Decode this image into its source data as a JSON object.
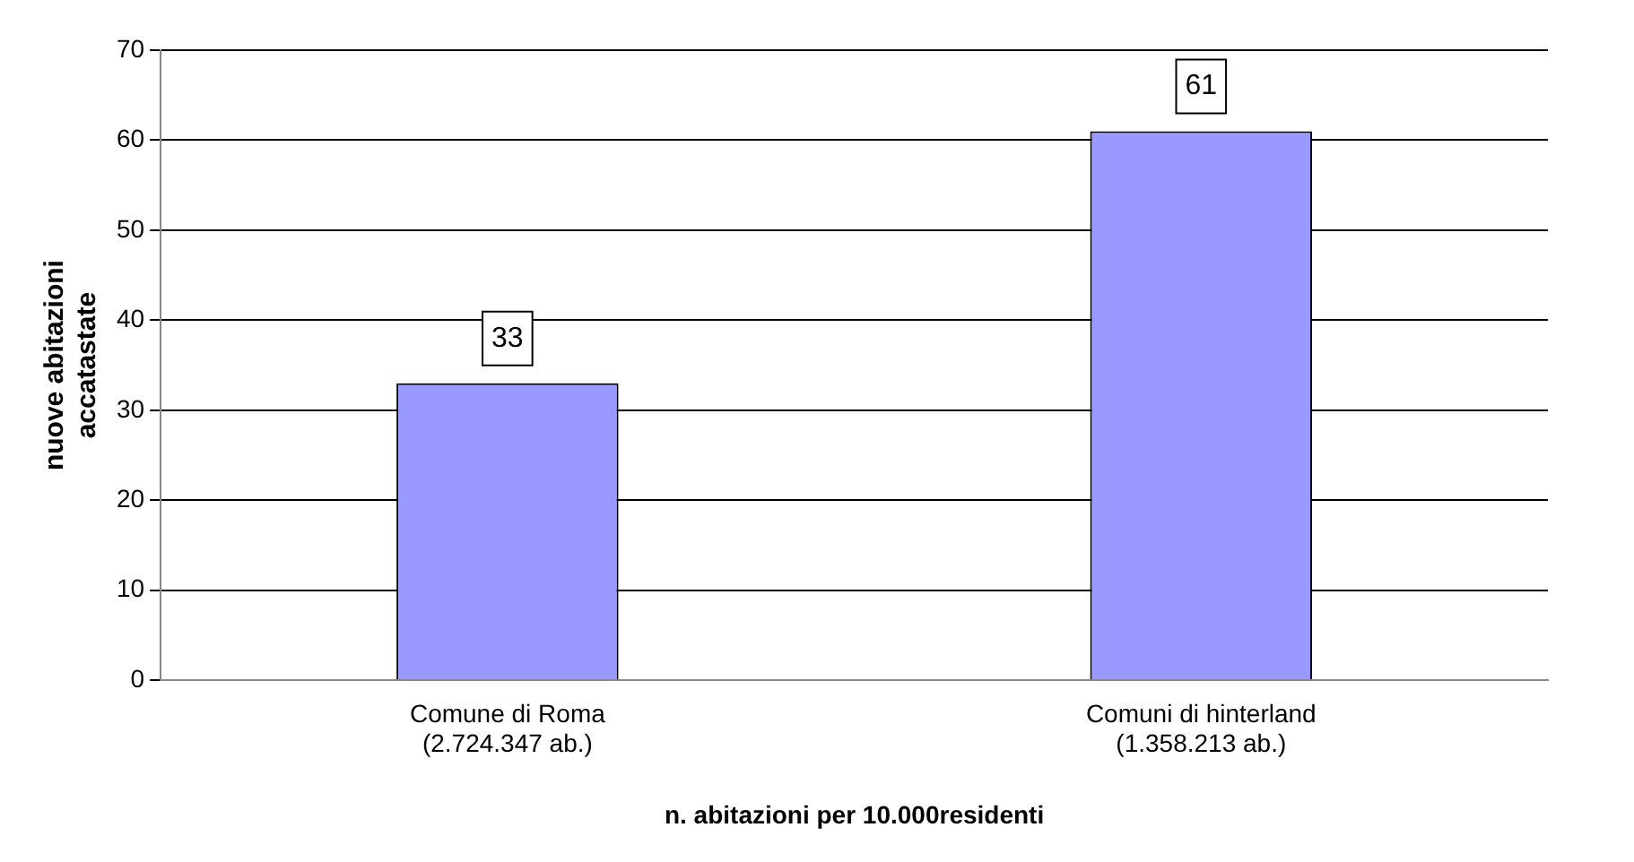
{
  "chart_data": {
    "type": "bar",
    "categories": [
      "Comune di Roma (2.724.347 ab.)",
      "Comuni di hinterland (1.358.213 ab.)"
    ],
    "values": [
      33,
      61
    ],
    "color": "#9999ff",
    "ylim": [
      0,
      70
    ],
    "yticks": [
      0,
      10,
      20,
      30,
      40,
      50,
      60,
      70
    ],
    "grid": "y",
    "data_labels": true,
    "xlabel": "n. abitazioni per 10.000residenti",
    "ylabel": "nuove abitazioni accatastate",
    "legend": false
  }
}
